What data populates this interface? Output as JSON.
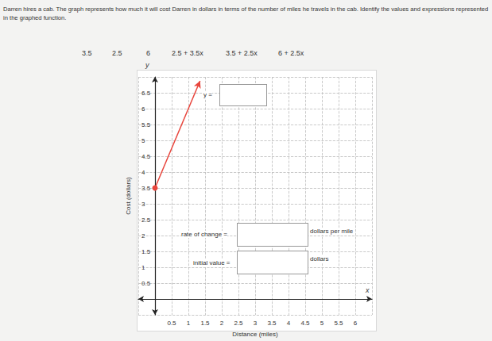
{
  "question": "Darren hires a cab. The graph represents how much it will cost Darren in dollars in terms of the number of miles he travels in the cab. Identify the values and expressions represented in the graphed function.",
  "answer_choices": [
    "3.5",
    "2.5",
    "6",
    "2.5 + 3.5x",
    "3.5 + 2.5x",
    "6 + 2.5x"
  ],
  "chart_data": {
    "type": "line",
    "x_label": "Distance (miles)",
    "y_label": "Cost (dollars)",
    "x_axis_letter": "x",
    "y_axis_letter": "y",
    "xlim": [
      -0.5,
      6.5
    ],
    "ylim": [
      -0.5,
      7
    ],
    "xticks": [
      0.5,
      1,
      1.5,
      2,
      2.5,
      3,
      3.5,
      4,
      4.5,
      5,
      5.5,
      6
    ],
    "yticks": [
      0.5,
      1,
      1.5,
      2,
      2.5,
      3,
      3.5,
      4,
      4.5,
      5,
      5.5,
      6,
      6.5
    ],
    "grid": true,
    "series": [
      {
        "x": [
          0,
          1.35
        ],
        "values": [
          3.5,
          6.875
        ],
        "color": "#e8453c",
        "marker": "dot",
        "line_style": "solid"
      }
    ],
    "answer_boxes": [
      {
        "label": "y ="
      },
      {
        "label": "rate of change =",
        "unit": "dollars per mile"
      },
      {
        "label": "initial value =",
        "unit": "dollars"
      }
    ]
  }
}
